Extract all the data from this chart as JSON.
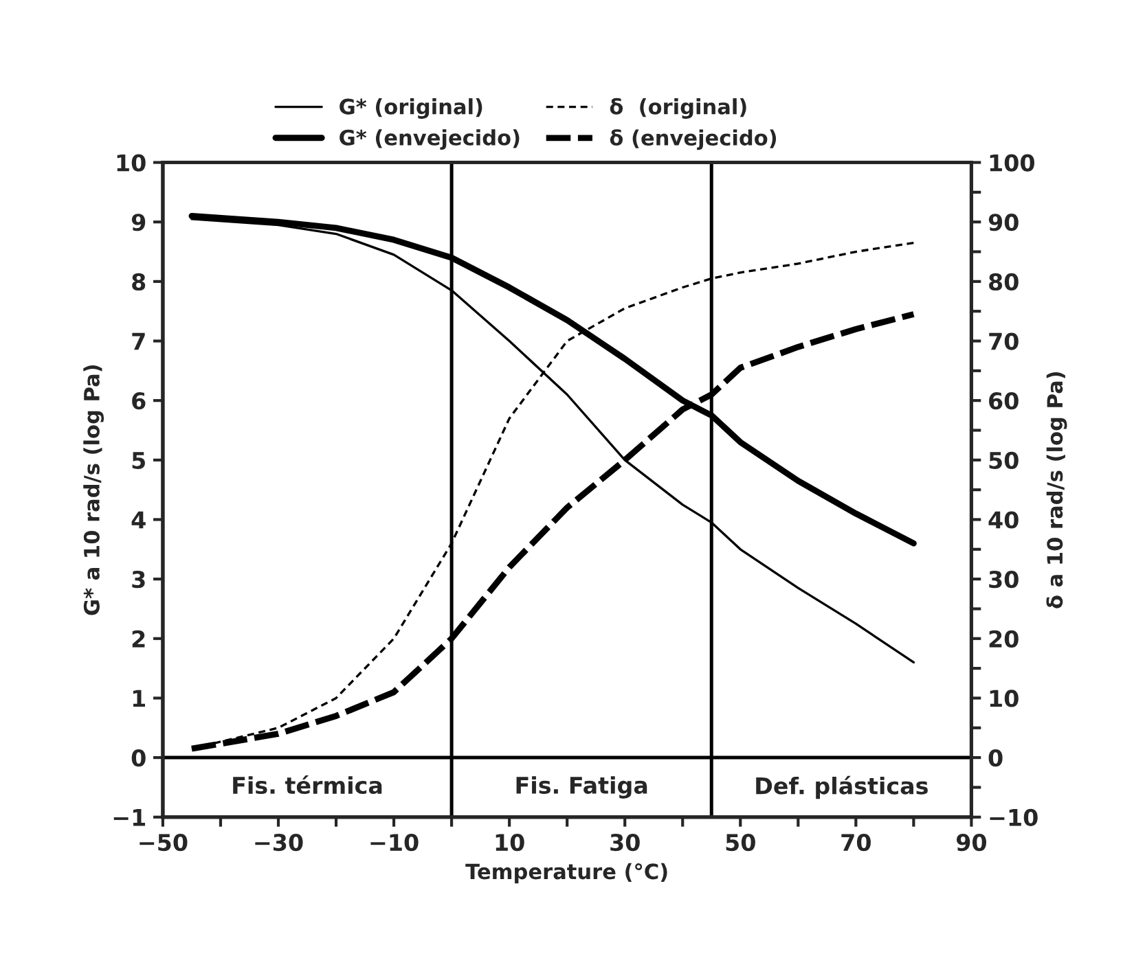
{
  "chart_data": {
    "type": "line",
    "xlabel": "Temperature (°C)",
    "ylabel": "G* a 10 rad/s (log Pa)",
    "y2label": "δ a 10 rad/s (log Pa)",
    "x": [
      -45,
      -30,
      -20,
      -10,
      0,
      10,
      20,
      30,
      40,
      45,
      50,
      60,
      70,
      80
    ],
    "series": [
      {
        "name": "G* (original)",
        "color": "#000000",
        "line_style": "solid",
        "values": [
          9.05,
          8.95,
          8.8,
          8.45,
          7.85,
          7.0,
          6.1,
          5.0,
          4.25,
          3.95,
          3.5,
          2.85,
          2.25,
          1.6
        ]
      },
      {
        "name": "G* (envejecido)",
        "color": "#000000",
        "line_style": "solid",
        "values": [
          9.1,
          9.0,
          8.9,
          8.7,
          8.4,
          7.9,
          7.35,
          6.7,
          6.0,
          5.75,
          5.3,
          4.65,
          4.1,
          3.6
        ]
      },
      {
        "name": "δ  (original)",
        "color": "#000000",
        "line_style": "dotted",
        "axis": "y2",
        "values": [
          1.5,
          5,
          10,
          20,
          36,
          57,
          70,
          75.5,
          79,
          80.5,
          81.5,
          83,
          85,
          86.5
        ]
      },
      {
        "name": "δ (envejecido)",
        "color": "#000000",
        "line_style": "dashed",
        "axis": "y2",
        "values": [
          1.5,
          4,
          7,
          11,
          20,
          32,
          42,
          50,
          58.5,
          61,
          65.5,
          69,
          72,
          74.5
        ]
      }
    ],
    "xlim": [
      -50,
      90
    ],
    "xticks": [
      -50,
      {
        "value": -40,
        "label": null
      },
      -30,
      {
        "value": -20,
        "label": null
      },
      -10,
      {
        "value": 0,
        "label": null
      },
      10,
      {
        "value": 20,
        "label": null
      },
      30,
      {
        "value": 40,
        "label": null
      },
      50,
      {
        "value": 60,
        "label": null
      },
      70,
      {
        "value": 80,
        "label": null
      },
      90
    ],
    "ylim": [
      -1,
      10
    ],
    "yticks": [
      -1,
      0,
      1,
      2,
      3,
      4,
      5,
      6,
      7,
      8,
      9,
      10
    ],
    "y2lim": [
      -10,
      100
    ],
    "y2ticks": [
      -10,
      {
        "value": -5,
        "label": null
      },
      0,
      {
        "value": 5,
        "label": null
      },
      10,
      {
        "value": 15,
        "label": null
      },
      20,
      {
        "value": 25,
        "label": null
      },
      30,
      {
        "value": 35,
        "label": null
      },
      40,
      {
        "value": 45,
        "label": null
      },
      50,
      {
        "value": 55,
        "label": null
      },
      60,
      {
        "value": 65,
        "label": null
      },
      70,
      {
        "value": 75,
        "label": null
      },
      80,
      {
        "value": 85,
        "label": null
      },
      90,
      {
        "value": 95,
        "label": null
      },
      100
    ],
    "ref_lines": [
      {
        "axis": "x",
        "value": 0,
        "color": "#000000"
      },
      {
        "axis": "x",
        "value": 45,
        "color": "#000000"
      },
      {
        "axis": "y",
        "value": 0,
        "color": "#000000"
      }
    ],
    "annotations": [
      "Fis. térmica",
      "Fis. Fatiga",
      "Def. plásticas"
    ],
    "legend": "top",
    "grid": false,
    "marker": "none"
  }
}
